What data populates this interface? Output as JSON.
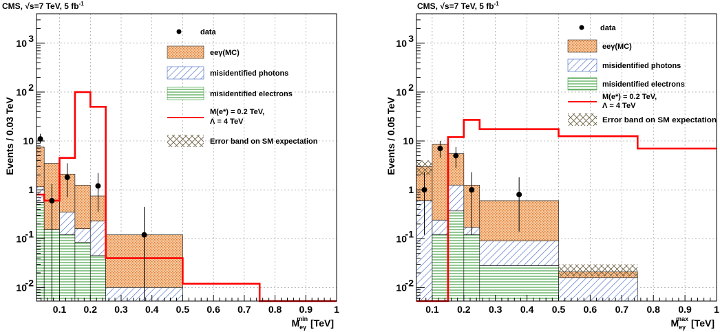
{
  "chart_data": [
    {
      "type": "histogram",
      "title": "CMS, √s=7 TeV, 5 fb",
      "title_sup": "-1",
      "ylabel": "Events / 0.03 TeV",
      "xlabel_main": "M",
      "xlabel_sub": "eγ",
      "xlabel_sup": "min",
      "xlabel_unit": " [TeV]",
      "xlim": [
        0.025,
        1.0
      ],
      "ylim": [
        0.0053,
        4000
      ],
      "yscale": "log",
      "grid": true,
      "xticks": [
        0.1,
        0.2,
        0.3,
        0.4,
        0.5,
        0.6,
        0.7,
        0.8,
        0.9,
        1
      ],
      "xtick_labels": [
        "0.1",
        "0.2",
        "0.3",
        "0.4",
        "0.5",
        "0.6",
        "0.7",
        "0.8",
        "0.9",
        "1"
      ],
      "yticks": [
        0.01,
        0.1,
        1,
        10,
        100,
        1000
      ],
      "bins": [
        {
          "lo": 0.025,
          "hi": 0.05,
          "electrons": 0.55,
          "photons": 1.15,
          "eeg": 7.5
        },
        {
          "lo": 0.05,
          "hi": 0.1,
          "electrons": 0.155,
          "photons": 0.155,
          "eeg": 3.5
        },
        {
          "lo": 0.1,
          "hi": 0.15,
          "electrons": 0.12,
          "photons": 0.35,
          "eeg": 2.1
        },
        {
          "lo": 0.15,
          "hi": 0.2,
          "electrons": 0.085,
          "photons": 0.16,
          "eeg": 1.25
        },
        {
          "lo": 0.2,
          "hi": 0.25,
          "electrons": 0.045,
          "photons": 0.23,
          "eeg": 0.75
        },
        {
          "lo": 0.25,
          "hi": 0.5,
          "electrons": 0.0053,
          "photons": 0.01,
          "eeg": 0.12
        }
      ],
      "signal": {
        "name": "M(e*) = 0.2 TeV,",
        "name2": "Λ = 4 TeV",
        "edges": [
          0.025,
          0.05,
          0.1,
          0.15,
          0.2,
          0.25,
          0.5,
          0.75,
          1.0
        ],
        "values": [
          0.8,
          0.6,
          4.5,
          100,
          50,
          0.04,
          0.012,
          0.005
        ]
      },
      "data_points": [
        {
          "x": 0.0375,
          "y": 11,
          "ylo": 9,
          "yhi": 14
        },
        {
          "x": 0.075,
          "y": 0.6,
          "ylo": 0.003,
          "yhi": 1.3
        },
        {
          "x": 0.125,
          "y": 1.8,
          "ylo": 0.7,
          "yhi": 3.5
        },
        {
          "x": 0.225,
          "y": 1.2,
          "ylo": 0.35,
          "yhi": 2.2
        },
        {
          "x": 0.375,
          "y": 0.12,
          "ylo": 0.003,
          "yhi": 0.45
        }
      ],
      "legend": {
        "data": "data",
        "eeg": "eeγ(MC)",
        "photons": "misidentified photons",
        "electrons": "misidentified electrons",
        "signal_1": "M(e*) = 0.2 TeV,",
        "signal_2": "Λ = 4 TeV",
        "error": "Error band on SM expectation"
      },
      "colors": {
        "eeg": "#f0a060",
        "photons": "#4a6fc8",
        "electrons": "#45a845",
        "signal": "#ff0000"
      }
    },
    {
      "type": "histogram",
      "title": "CMS, √s=7 TeV, 5 fb",
      "title_sup": "-1",
      "ylabel": "Events / 0.05 TeV",
      "xlabel_main": "M",
      "xlabel_sub": "eγ",
      "xlabel_sup": "max",
      "xlabel_unit": " [TeV]",
      "xlim": [
        0.05,
        1.0
      ],
      "ylim": [
        0.0053,
        4000
      ],
      "yscale": "log",
      "grid": true,
      "xticks": [
        0.1,
        0.2,
        0.3,
        0.4,
        0.5,
        0.6,
        0.7,
        0.8,
        0.9,
        1
      ],
      "xtick_labels": [
        "0.1",
        "0.2",
        "0.3",
        "0.4",
        "0.5",
        "0.6",
        "0.7",
        "0.8",
        "0.9",
        "1"
      ],
      "yticks": [
        0.01,
        0.1,
        1,
        10,
        100,
        1000
      ],
      "bins": [
        {
          "lo": 0.05,
          "hi": 0.1,
          "electrons": 0.0053,
          "photons": 0.6,
          "eeg": 3.0,
          "err": [
            2.0,
            4.0
          ]
        },
        {
          "lo": 0.1,
          "hi": 0.15,
          "electrons": 0.12,
          "photons": 0.24,
          "eeg": 8.5
        },
        {
          "lo": 0.15,
          "hi": 0.2,
          "electrons": 0.37,
          "photons": 1.25,
          "eeg": 5.5
        },
        {
          "lo": 0.2,
          "hi": 0.25,
          "electrons": 0.12,
          "photons": 0.17,
          "eeg": 1.25
        },
        {
          "lo": 0.25,
          "hi": 0.5,
          "electrons": 0.028,
          "photons": 0.09,
          "eeg": 0.6
        },
        {
          "lo": 0.5,
          "hi": 0.75,
          "electrons": 0.0053,
          "photons": 0.016,
          "eeg": 0.021,
          "err": [
            0.017,
            0.03
          ]
        }
      ],
      "signal": {
        "name": "M(e*) = 0.2 TeV,",
        "name2": "Λ = 4 TeV",
        "edges": [
          0.05,
          0.1,
          0.15,
          0.2,
          0.25,
          0.5,
          0.75,
          1.0
        ],
        "values": [
          0.005,
          0.005,
          12,
          27,
          17.5,
          12.5,
          7
        ]
      },
      "data_points": [
        {
          "x": 0.075,
          "y": 1.0,
          "ylo": 0.12,
          "yhi": 2.3
        },
        {
          "x": 0.125,
          "y": 7.0,
          "ylo": 4.5,
          "yhi": 10
        },
        {
          "x": 0.175,
          "y": 5.0,
          "ylo": 2.8,
          "yhi": 7.5
        },
        {
          "x": 0.225,
          "y": 1.0,
          "ylo": 0.12,
          "yhi": 2.3
        },
        {
          "x": 0.375,
          "y": 0.8,
          "ylo": 0.14,
          "yhi": 1.8
        }
      ],
      "legend": {
        "data": "data",
        "eeg": "eeγ(MC)",
        "photons": "misidentified photons",
        "electrons": "misidentified electrons",
        "signal_1": "M(e*) = 0.2 TeV,",
        "signal_2": "Λ = 4 TeV",
        "error": "Error band on SM expectation"
      },
      "colors": {
        "eeg": "#f0a060",
        "photons": "#4a6fc8",
        "electrons": "#45a845",
        "signal": "#ff0000"
      }
    }
  ]
}
